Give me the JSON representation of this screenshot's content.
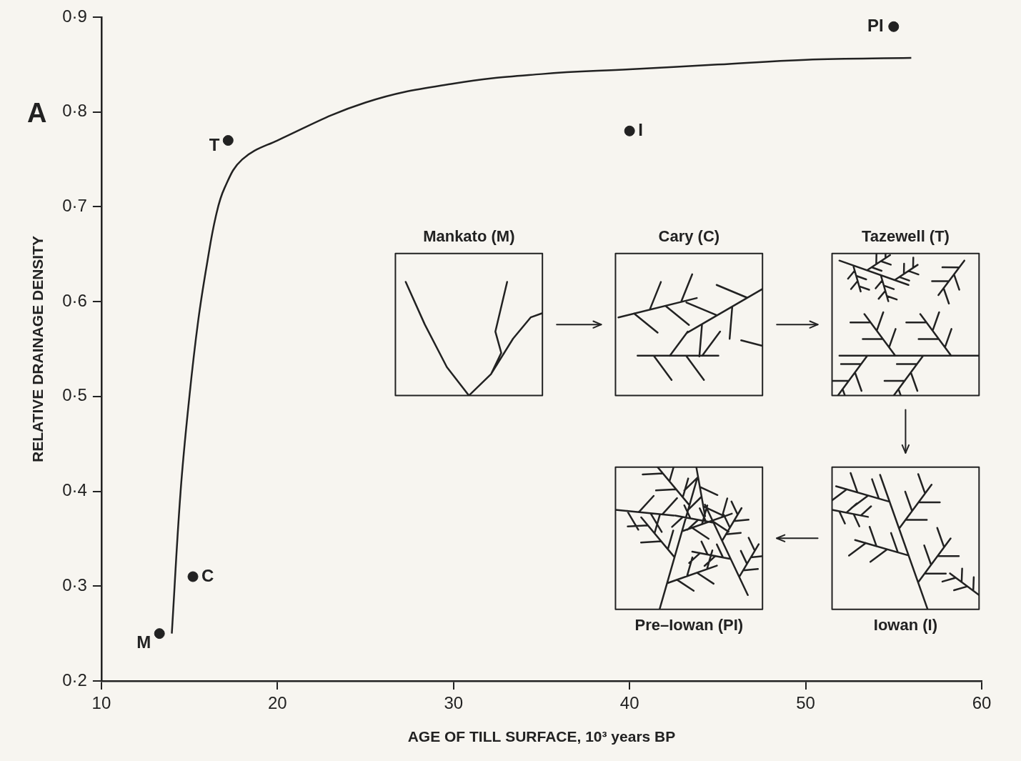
{
  "chart_data": {
    "type": "scatter",
    "panel": "A",
    "x_label": "AGE OF TILL SURFACE, 10³ years BP",
    "y_label": "RELATIVE DRAINAGE DENSITY",
    "xlim": [
      10,
      60
    ],
    "xticks": [
      10,
      20,
      30,
      40,
      50,
      60
    ],
    "ylim": [
      0.2,
      0.9
    ],
    "yticks": [
      {
        "value": 0.2,
        "label": "0·2"
      },
      {
        "value": 0.3,
        "label": "0·3"
      },
      {
        "value": 0.4,
        "label": "0·4"
      },
      {
        "value": 0.5,
        "label": "0·5"
      },
      {
        "value": 0.6,
        "label": "0·6"
      },
      {
        "value": 0.7,
        "label": "0·7"
      },
      {
        "value": 0.8,
        "label": "0·8"
      },
      {
        "value": 0.9,
        "label": "0·9"
      }
    ],
    "grid": false,
    "series": [
      {
        "type": "scatter",
        "color": "#222222",
        "marker": "circle",
        "x": [
          13.3,
          15.2,
          17.2,
          40,
          55
        ],
        "values": [
          0.25,
          0.31,
          0.77,
          0.78,
          0.89
        ],
        "point_labels": [
          "M",
          "C",
          "T",
          "I",
          "PI"
        ]
      },
      {
        "type": "line",
        "color": "#222222",
        "line_style": "solid",
        "x": [
          14,
          14.5,
          15,
          15.5,
          16,
          16.5,
          17,
          18,
          20,
          25,
          30,
          35,
          40,
          45,
          50,
          56
        ],
        "values": [
          0.25,
          0.4,
          0.5,
          0.58,
          0.64,
          0.69,
          0.72,
          0.75,
          0.77,
          0.81,
          0.83,
          0.84,
          0.845,
          0.85,
          0.855,
          0.857
        ]
      }
    ]
  },
  "insets": [
    {
      "label": "Mankato (M)"
    },
    {
      "label": "Cary (C)"
    },
    {
      "label": "Tazewell (T)"
    },
    {
      "label": "Iowan (I)"
    },
    {
      "label": "Pre–Iowan (PI)"
    }
  ]
}
